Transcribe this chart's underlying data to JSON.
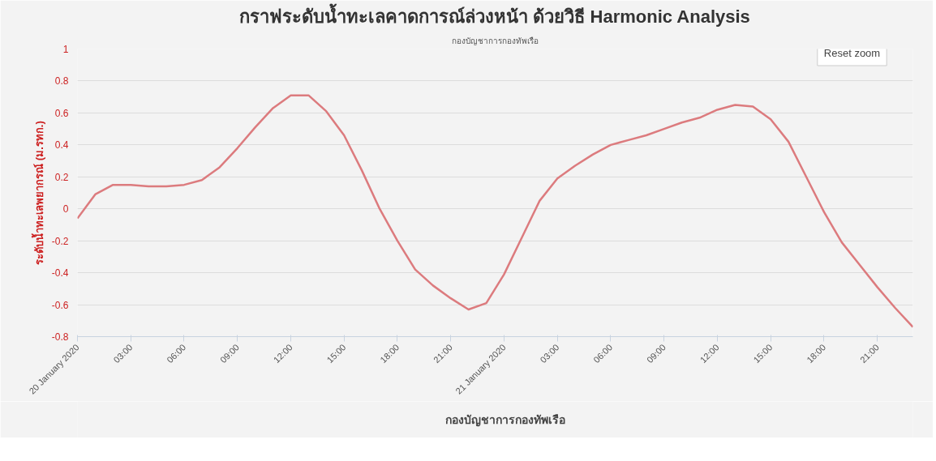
{
  "chart_data": {
    "type": "line",
    "title": "กราฟระดับน้ำทะเลคาดการณ์ล่วงหน้า ด้วยวิธี Harmonic Analysis",
    "subtitle": "กองบัญชาการกองทัพเรือ",
    "ylabel": "ระดับน้ำทะเลพยากรณ์ (ม.รทก.)",
    "annotations": [
      "Reset zoom"
    ],
    "x": [
      "2020-01-20T00:00",
      "2020-01-20T01:00",
      "2020-01-20T02:00",
      "2020-01-20T03:00",
      "2020-01-20T04:00",
      "2020-01-20T05:00",
      "2020-01-20T06:00",
      "2020-01-20T07:00",
      "2020-01-20T08:00",
      "2020-01-20T09:00",
      "2020-01-20T10:00",
      "2020-01-20T11:00",
      "2020-01-20T12:00",
      "2020-01-20T13:00",
      "2020-01-20T14:00",
      "2020-01-20T15:00",
      "2020-01-20T16:00",
      "2020-01-20T17:00",
      "2020-01-20T18:00",
      "2020-01-20T19:00",
      "2020-01-20T20:00",
      "2020-01-20T21:00",
      "2020-01-20T22:00",
      "2020-01-20T23:00",
      "2020-01-21T00:00",
      "2020-01-21T01:00",
      "2020-01-21T02:00",
      "2020-01-21T03:00",
      "2020-01-21T04:00",
      "2020-01-21T05:00",
      "2020-01-21T06:00",
      "2020-01-21T07:00",
      "2020-01-21T08:00",
      "2020-01-21T09:00",
      "2020-01-21T10:00",
      "2020-01-21T11:00",
      "2020-01-21T12:00",
      "2020-01-21T13:00",
      "2020-01-21T14:00",
      "2020-01-21T15:00",
      "2020-01-21T16:00",
      "2020-01-21T17:00",
      "2020-01-21T18:00",
      "2020-01-21T19:00",
      "2020-01-21T20:00",
      "2020-01-21T21:00",
      "2020-01-21T22:00",
      "2020-01-21T23:00"
    ],
    "series": [
      {
        "name": "กองบัญชาการกองทัพเรือ",
        "color": "#dc7b7e",
        "values": [
          -0.06,
          0.09,
          0.15,
          0.15,
          0.14,
          0.14,
          0.15,
          0.18,
          0.26,
          0.38,
          0.51,
          0.63,
          0.71,
          0.71,
          0.61,
          0.46,
          0.24,
          0.0,
          -0.2,
          -0.38,
          -0.48,
          -0.56,
          -0.63,
          -0.59,
          -0.41,
          -0.18,
          0.05,
          0.19,
          0.27,
          0.34,
          0.4,
          0.43,
          0.46,
          0.5,
          0.54,
          0.57,
          0.62,
          0.65,
          0.64,
          0.56,
          0.42,
          0.2,
          -0.02,
          -0.21,
          -0.35,
          -0.49,
          -0.62,
          -0.74
        ]
      }
    ],
    "xlim": [
      "2020-01-20T00:00",
      "2020-01-21T23:00"
    ],
    "xticks": [
      {
        "value": "2020-01-20T00:00",
        "label": "20 January 2020"
      },
      {
        "value": "2020-01-20T03:00",
        "label": "03:00"
      },
      {
        "value": "2020-01-20T06:00",
        "label": "06:00"
      },
      {
        "value": "2020-01-20T09:00",
        "label": "09:00"
      },
      {
        "value": "2020-01-20T12:00",
        "label": "12:00"
      },
      {
        "value": "2020-01-20T15:00",
        "label": "15:00"
      },
      {
        "value": "2020-01-20T18:00",
        "label": "18:00"
      },
      {
        "value": "2020-01-20T21:00",
        "label": "21:00"
      },
      {
        "value": "2020-01-21T00:00",
        "label": "21 January 2020"
      },
      {
        "value": "2020-01-21T03:00",
        "label": "03:00"
      },
      {
        "value": "2020-01-21T06:00",
        "label": "06:00"
      },
      {
        "value": "2020-01-21T09:00",
        "label": "09:00"
      },
      {
        "value": "2020-01-21T12:00",
        "label": "12:00"
      },
      {
        "value": "2020-01-21T15:00",
        "label": "15:00"
      },
      {
        "value": "2020-01-21T18:00",
        "label": "18:00"
      },
      {
        "value": "2020-01-21T21:00",
        "label": "21:00"
      }
    ],
    "ylim": [
      -0.8,
      1
    ],
    "yticks": [
      -0.8,
      -0.6,
      -0.4,
      -0.2,
      0,
      0.2,
      0.4,
      0.6,
      0.8,
      1
    ],
    "grid": "y",
    "legend": "bottom",
    "marker": "none",
    "line_style": "solid"
  }
}
